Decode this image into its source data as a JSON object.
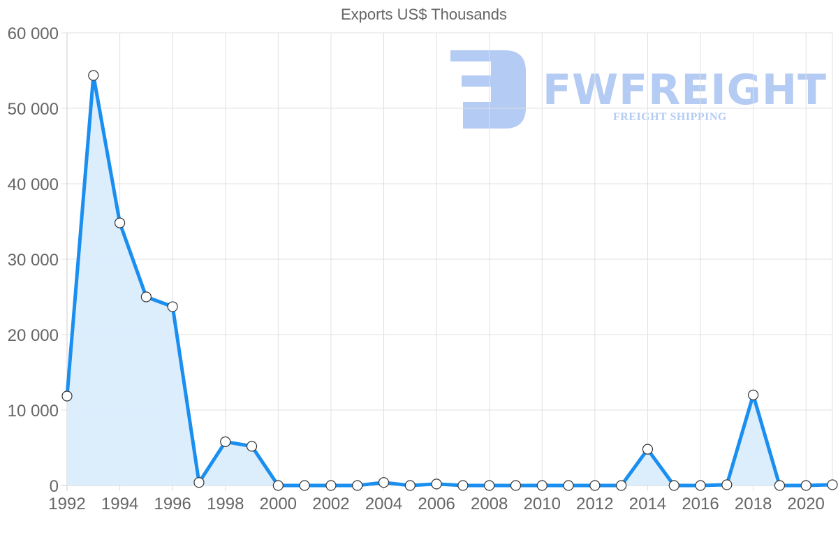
{
  "title": "Exports US$ Thousands",
  "watermark": {
    "brand": "FWFREIGHT",
    "tagline": "FREIGHT SHIPPING",
    "color": "#b4cbf3"
  },
  "colors": {
    "line": "#1a8ff0",
    "fill": "#daecfc",
    "grid": "#e0e0e0",
    "point_fill": "#ffffff",
    "point_stroke": "#333333",
    "text": "#666666"
  },
  "chart_data": {
    "type": "area",
    "title": "Exports US$ Thousands",
    "xlabel": "",
    "ylabel": "",
    "ylim": [
      0,
      60000
    ],
    "y_ticks": [
      "0",
      "10 000",
      "20 000",
      "30 000",
      "40 000",
      "50 000",
      "60 000"
    ],
    "x_tick_labels": [
      "1992",
      "1994",
      "1996",
      "1998",
      "2000",
      "2002",
      "2004",
      "2006",
      "2008",
      "2010",
      "2012",
      "2014",
      "2016",
      "2018",
      "2020"
    ],
    "grid": true,
    "legend": "none",
    "x": [
      1992,
      1993,
      1994,
      1995,
      1996,
      1997,
      1998,
      1999,
      2000,
      2001,
      2002,
      2003,
      2004,
      2005,
      2006,
      2007,
      2008,
      2009,
      2010,
      2011,
      2012,
      2013,
      2014,
      2015,
      2016,
      2017,
      2018,
      2019,
      2020,
      2021
    ],
    "series": [
      {
        "name": "Exports US$ Thousands",
        "values": [
          11850,
          54350,
          34800,
          25000,
          23700,
          400,
          5800,
          5200,
          0,
          0,
          0,
          0,
          400,
          0,
          200,
          0,
          0,
          0,
          0,
          0,
          0,
          0,
          4800,
          0,
          0,
          100,
          12000,
          0,
          0,
          100
        ]
      }
    ]
  }
}
